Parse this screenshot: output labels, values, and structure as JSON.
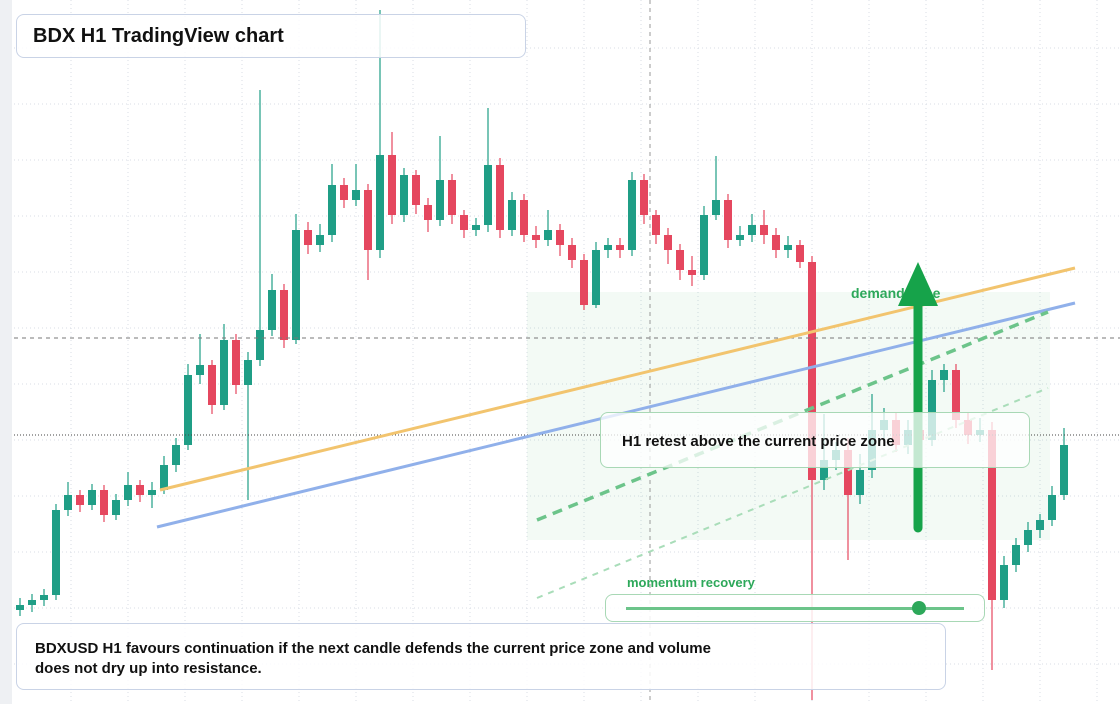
{
  "chart_data": {
    "type": "candlestick",
    "title": "BDX H1 TradingView chart",
    "annotations": [
      "demand zone",
      "H1 retest above the current price zone",
      "momentum recovery"
    ],
    "caption": "BDXUSD H1 favours continuation if the next candle defends the current price zone and volume does not dry up into resistance.",
    "ylim": [
      0,
      704
    ],
    "up_color": "#1f9e86",
    "down_color": "#e5475f",
    "open": [
      94,
      99,
      104,
      109,
      194,
      209,
      199,
      214,
      189,
      204,
      219,
      209,
      214,
      239,
      259,
      329,
      339,
      299,
      364,
      319,
      344,
      374,
      414,
      364,
      474,
      459,
      469,
      519,
      504,
      514,
      454,
      549,
      489,
      529,
      499,
      484,
      524,
      489,
      474,
      479,
      539,
      474,
      504,
      469,
      464,
      474,
      459,
      444,
      399,
      454,
      459,
      454,
      524,
      489,
      469,
      454,
      434,
      429,
      489,
      504,
      464,
      469,
      479,
      469,
      454,
      459,
      442,
      224,
      244,
      254,
      209,
      234,
      274,
      284,
      259,
      274,
      264,
      324,
      334,
      284,
      269,
      274,
      104,
      139,
      159,
      174,
      184,
      209
    ],
    "high": [
      106,
      110,
      115,
      200,
      222,
      214,
      220,
      219,
      210,
      232,
      224,
      222,
      248,
      266,
      340,
      370,
      344,
      380,
      370,
      352,
      614,
      430,
      420,
      490,
      482,
      480,
      540,
      526,
      540,
      520,
      694,
      572,
      536,
      534,
      506,
      568,
      530,
      494,
      486,
      596,
      546,
      512,
      510,
      478,
      494,
      480,
      466,
      450,
      462,
      466,
      466,
      532,
      530,
      494,
      476,
      460,
      448,
      498,
      548,
      510,
      478,
      490,
      494,
      476,
      468,
      464,
      448,
      290,
      262,
      266,
      250,
      310,
      296,
      292,
      284,
      290,
      334,
      340,
      340,
      292,
      286,
      282,
      148,
      166,
      182,
      190,
      218,
      276
    ],
    "low": [
      88,
      92,
      98,
      104,
      188,
      192,
      194,
      182,
      184,
      198,
      202,
      196,
      210,
      232,
      254,
      320,
      290,
      294,
      310,
      204,
      338,
      368,
      356,
      360,
      450,
      452,
      462,
      496,
      498,
      424,
      446,
      480,
      482,
      490,
      472,
      478,
      480,
      466,
      468,
      472,
      466,
      468,
      462,
      456,
      458,
      448,
      436,
      394,
      396,
      446,
      446,
      448,
      480,
      460,
      440,
      424,
      418,
      424,
      484,
      456,
      458,
      462,
      460,
      446,
      446,
      436,
      4,
      214,
      234,
      144,
      200,
      226,
      266,
      252,
      250,
      256,
      258,
      312,
      276,
      260,
      262,
      34,
      96,
      132,
      152,
      166,
      178,
      204
    ],
    "close": [
      99,
      104,
      109,
      194,
      209,
      199,
      214,
      189,
      204,
      219,
      209,
      214,
      239,
      259,
      329,
      339,
      299,
      364,
      319,
      344,
      374,
      414,
      364,
      474,
      459,
      469,
      519,
      504,
      514,
      454,
      549,
      489,
      529,
      499,
      484,
      524,
      489,
      474,
      479,
      539,
      474,
      504,
      469,
      464,
      474,
      459,
      444,
      399,
      454,
      459,
      454,
      524,
      489,
      469,
      454,
      434,
      429,
      489,
      504,
      464,
      469,
      479,
      469,
      454,
      459,
      442,
      224,
      244,
      254,
      209,
      234,
      274,
      284,
      259,
      274,
      264,
      324,
      334,
      284,
      269,
      274,
      104,
      139,
      159,
      174,
      184,
      209,
      259
    ]
  }
}
